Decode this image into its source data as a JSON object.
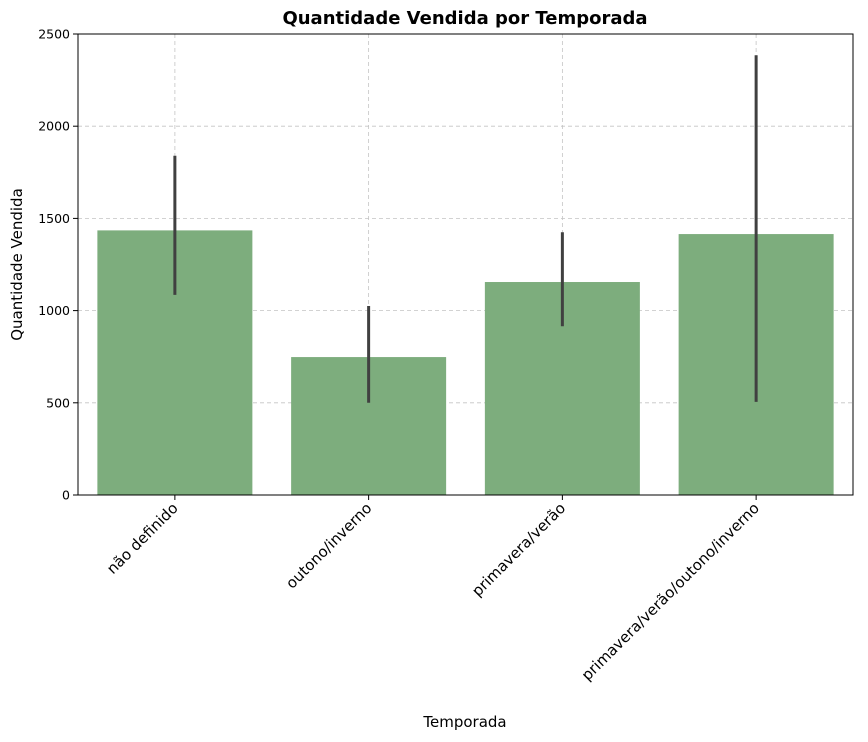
{
  "chart_data": {
    "type": "bar",
    "title": "Quantidade Vendida por Temporada",
    "xlabel": "Temporada",
    "ylabel": "Quantidade Vendida",
    "categories": [
      "não definido",
      "outono/inverno",
      "primavera/verão",
      "primavera/verão/outono/inverno"
    ],
    "values": [
      1435,
      748,
      1155,
      1415
    ],
    "error_bars": [
      {
        "low": 1085,
        "high": 1840
      },
      {
        "low": 500,
        "high": 1025
      },
      {
        "low": 915,
        "high": 1425
      },
      {
        "low": 505,
        "high": 2385
      }
    ],
    "ylim": [
      0,
      2500
    ],
    "yticks": [
      "0",
      "500",
      "1000",
      "1500",
      "2000",
      "2500"
    ],
    "grid": true,
    "bar_color": "#7dad7d",
    "error_color": "#404040"
  }
}
